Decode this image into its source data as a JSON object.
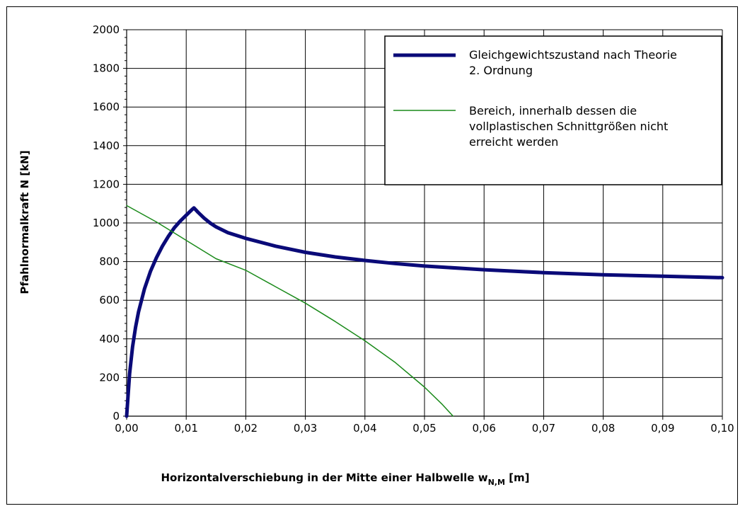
{
  "chart_data": {
    "type": "line",
    "title": "",
    "xlabel": "Horizontalverschiebung in der Mitte einer Halbwelle w",
    "xlabel_subscript": "N,M",
    "xlabel_unit": " [m]",
    "ylabel": "Pfahlnormalkraft N [kN]",
    "xlim": [
      0,
      0.1
    ],
    "ylim": [
      0,
      2000
    ],
    "x_ticks": [
      0,
      0.01,
      0.02,
      0.03,
      0.04,
      0.05,
      0.06,
      0.07,
      0.08,
      0.09,
      0.1
    ],
    "x_tick_labels": [
      "0,00",
      "0,01",
      "0,02",
      "0,03",
      "0,04",
      "0,05",
      "0,06",
      "0,07",
      "0,08",
      "0,09",
      "0,10"
    ],
    "y_ticks": [
      0,
      200,
      400,
      600,
      800,
      1000,
      1200,
      1400,
      1600,
      1800,
      2000
    ],
    "y_tick_labels": [
      "0",
      "200",
      "400",
      "600",
      "800",
      "1000",
      "1200",
      "1400",
      "1600",
      "1800",
      "2000"
    ],
    "grid": true,
    "legend_position": "top-right",
    "series": [
      {
        "name": "Gleichgewichtszustand nach Theorie 2. Ordnung",
        "legend_lines": [
          "Gleichgewichtszustand nach Theorie",
          "2. Ordnung"
        ],
        "color": "#0a0a78",
        "x": [
          0,
          0.0005,
          0.001,
          0.0015,
          0.002,
          0.003,
          0.004,
          0.005,
          0.006,
          0.007,
          0.008,
          0.009,
          0.01,
          0.011,
          0.0113,
          0.012,
          0.013,
          0.014,
          0.015,
          0.017,
          0.02,
          0.025,
          0.03,
          0.035,
          0.04,
          0.045,
          0.05,
          0.06,
          0.07,
          0.08,
          0.09,
          0.1
        ],
        "y": [
          0,
          220,
          360,
          460,
          540,
          660,
          750,
          820,
          880,
          930,
          975,
          1010,
          1040,
          1070,
          1078,
          1055,
          1025,
          1000,
          980,
          950,
          920,
          880,
          848,
          824,
          806,
          790,
          777,
          758,
          743,
          732,
          724,
          717
        ]
      },
      {
        "name": "Bereich, innerhalb dessen die vollplastischen Schnittgrößen nicht erreicht werden",
        "legend_lines": [
          "Bereich, innerhalb dessen die",
          "vollplastischen Schnittgrößen nicht",
          "erreicht werden"
        ],
        "color": "#1a8a1a",
        "x": [
          0,
          0.005,
          0.01,
          0.015,
          0.02,
          0.025,
          0.03,
          0.035,
          0.04,
          0.045,
          0.05,
          0.053,
          0.0548
        ],
        "y": [
          1090,
          1005,
          910,
          815,
          755,
          670,
          585,
          490,
          390,
          280,
          150,
          60,
          0
        ]
      }
    ]
  }
}
